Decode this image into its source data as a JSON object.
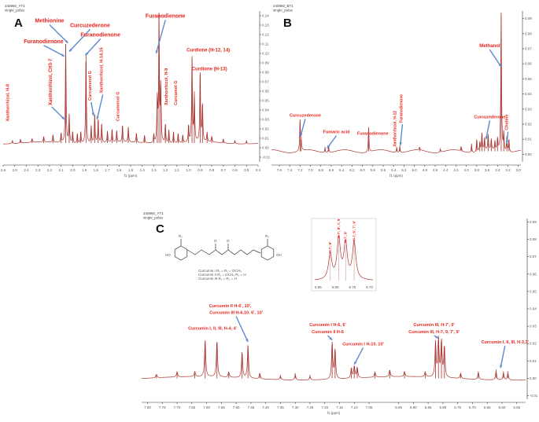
{
  "chart_data": [
    {
      "panel": "A",
      "type": "line",
      "header": [
        "240860_YT1",
        "single_pulse"
      ],
      "xlabel": "f1 (ppm)",
      "x_ticks": [
        2.6,
        2.5,
        2.4,
        2.3,
        2.2,
        2.1,
        2.0,
        1.9,
        1.8,
        1.7,
        1.6,
        1.5,
        1.4,
        1.3,
        1.2,
        1.1,
        1.0,
        0.9,
        0.8,
        0.7,
        0.6,
        0.5,
        0.4
      ],
      "y_ticks": [
        -0.01,
        0.0,
        0.01,
        0.02,
        0.03,
        0.04,
        0.05,
        0.06,
        0.07,
        0.08,
        0.09,
        0.1,
        0.11,
        0.12,
        0.13,
        0.14
      ],
      "xlim": [
        2.6,
        0.4
      ],
      "ylim": [
        -0.015,
        0.145
      ],
      "baseline": 0.005,
      "peaks": [
        {
          "x": 2.52,
          "h": 0.003
        },
        {
          "x": 2.45,
          "h": 0.004
        },
        {
          "x": 2.35,
          "h": 0.004
        },
        {
          "x": 2.25,
          "h": 0.006
        },
        {
          "x": 2.17,
          "h": 0.008
        },
        {
          "x": 2.1,
          "h": 0.01
        },
        {
          "x": 2.06,
          "h": 0.105
        },
        {
          "x": 2.03,
          "h": 0.03
        },
        {
          "x": 2.0,
          "h": 0.012
        },
        {
          "x": 1.96,
          "h": 0.01
        },
        {
          "x": 1.93,
          "h": 0.012
        },
        {
          "x": 1.885,
          "h": 0.095
        },
        {
          "x": 1.84,
          "h": 0.018
        },
        {
          "x": 1.81,
          "h": 0.03
        },
        {
          "x": 1.78,
          "h": 0.025
        },
        {
          "x": 1.75,
          "h": 0.02
        },
        {
          "x": 1.7,
          "h": 0.012
        },
        {
          "x": 1.66,
          "h": 0.014
        },
        {
          "x": 1.62,
          "h": 0.012
        },
        {
          "x": 1.57,
          "h": 0.018
        },
        {
          "x": 1.52,
          "h": 0.016
        },
        {
          "x": 1.45,
          "h": 0.01
        },
        {
          "x": 1.38,
          "h": 0.008
        },
        {
          "x": 1.3,
          "h": 0.009
        },
        {
          "x": 1.27,
          "h": 0.045
        },
        {
          "x": 1.255,
          "h": 0.135
        },
        {
          "x": 1.24,
          "h": 0.06
        },
        {
          "x": 1.2,
          "h": 0.02
        },
        {
          "x": 1.17,
          "h": 0.014
        },
        {
          "x": 1.13,
          "h": 0.012
        },
        {
          "x": 1.09,
          "h": 0.01
        },
        {
          "x": 1.05,
          "h": 0.008
        },
        {
          "x": 1.0,
          "h": 0.018
        },
        {
          "x": 0.97,
          "h": 0.09
        },
        {
          "x": 0.95,
          "h": 0.05
        },
        {
          "x": 0.9,
          "h": 0.075
        },
        {
          "x": 0.88,
          "h": 0.04
        },
        {
          "x": 0.84,
          "h": 0.01
        },
        {
          "x": 0.8,
          "h": 0.006
        },
        {
          "x": 0.7,
          "h": 0.004
        },
        {
          "x": 0.6,
          "h": 0.003
        },
        {
          "x": 0.5,
          "h": 0.003
        }
      ],
      "annotations": [
        {
          "text": "Methionine",
          "tx": 2.2,
          "ty": 0.133,
          "size": 7,
          "ax": 2.04,
          "ay": 0.111,
          "rot": 0
        },
        {
          "text": "Curcuzederone",
          "tx": 1.85,
          "ty": 0.128,
          "size": 7,
          "ax": 2.03,
          "ay": 0.102,
          "rot": 0
        },
        {
          "text": "Furanodienone",
          "tx": 2.25,
          "ty": 0.111,
          "size": 7,
          "ax": 2.07,
          "ay": 0.097,
          "rot": 0
        },
        {
          "text": "Furanodienone",
          "tx": 1.76,
          "ty": 0.118,
          "size": 7,
          "ax": 1.89,
          "ay": 0.098,
          "rot": 0
        },
        {
          "text": "Furanodienone",
          "tx": 1.2,
          "ty": 0.138,
          "size": 7,
          "ax": 1.28,
          "ay": 0.1,
          "rot": 0
        },
        {
          "text": "Curdione (H-12, 14)",
          "tx": 0.83,
          "ty": 0.102,
          "size": 6,
          "ax": 0,
          "ay": 0,
          "rot": 0
        },
        {
          "text": "Curdione (H-13)",
          "tx": 0.82,
          "ty": 0.082,
          "size": 6,
          "ax": 0,
          "ay": 0,
          "rot": 0
        },
        {
          "text": "Xanthorrhizol, CH3-7",
          "tx": 2.18,
          "ty": 0.045,
          "size": 6,
          "ax": 2.07,
          "ay": 0.03,
          "rot": -90
        },
        {
          "text": "Curcumenol G",
          "tx": 1.84,
          "ty": 0.05,
          "size": 5.5,
          "ax": 1.82,
          "ay": 0.034,
          "rot": -90
        },
        {
          "text": "Xanthorrhizol, H-14,15",
          "tx": 1.74,
          "ty": 0.058,
          "size": 5.5,
          "ax": 1.79,
          "ay": 0.03,
          "rot": -90
        },
        {
          "text": "Curcumenol G",
          "tx": 1.6,
          "ty": 0.028,
          "size": 5.5,
          "ax": 0,
          "ay": 0,
          "rot": -90
        },
        {
          "text": "Xanthorrhizol, H-8",
          "tx": 2.55,
          "ty": 0.028,
          "size": 5.5,
          "ax": 0,
          "ay": 0,
          "rot": -90
        },
        {
          "text": "Xanthorrhizol, H-9",
          "tx": 1.18,
          "ty": 0.045,
          "size": 5.5,
          "ax": 0,
          "ay": 0,
          "rot": -90
        },
        {
          "text": "Curcumol G",
          "tx": 1.1,
          "ty": 0.045,
          "size": 5.5,
          "ax": 0,
          "ay": 0,
          "rot": -90
        }
      ]
    },
    {
      "panel": "B",
      "type": "line",
      "header": [
        "240860_BT1",
        "single_pulse"
      ],
      "xlabel": "f1 (ppm)",
      "x_ticks": [
        7.6,
        7.4,
        7.2,
        7.0,
        6.8,
        6.6,
        6.4,
        6.2,
        6.0,
        5.8,
        5.6,
        5.4,
        5.2,
        5.0,
        4.8,
        4.6,
        4.4,
        4.2,
        4.0,
        3.8,
        3.6,
        3.4,
        3.2,
        3.0
      ],
      "y_ticks": [
        0.0,
        0.01,
        0.02,
        0.03,
        0.04,
        0.05,
        0.06,
        0.07,
        0.08,
        0.09
      ],
      "xlim": [
        7.75,
        2.95
      ],
      "ylim": [
        -0.005,
        0.095
      ],
      "baseline": 0.002,
      "peaks": [
        {
          "x": 7.2,
          "h": 0.02
        },
        {
          "x": 7.18,
          "h": 0.008
        },
        {
          "x": 6.72,
          "h": 0.003
        },
        {
          "x": 6.65,
          "h": 0.004
        },
        {
          "x": 5.88,
          "h": 0.016
        },
        {
          "x": 5.34,
          "h": 0.003
        },
        {
          "x": 5.28,
          "h": 0.004
        },
        {
          "x": 4.9,
          "h": 0.002
        },
        {
          "x": 4.5,
          "h": 0.002
        },
        {
          "x": 4.1,
          "h": 0.003
        },
        {
          "x": 3.9,
          "h": 0.005
        },
        {
          "x": 3.8,
          "h": 0.008
        },
        {
          "x": 3.74,
          "h": 0.006
        },
        {
          "x": 3.7,
          "h": 0.012
        },
        {
          "x": 3.65,
          "h": 0.008
        },
        {
          "x": 3.58,
          "h": 0.01
        },
        {
          "x": 3.52,
          "h": 0.007
        },
        {
          "x": 3.45,
          "h": 0.006
        },
        {
          "x": 3.4,
          "h": 0.008
        },
        {
          "x": 3.33,
          "h": 0.092
        },
        {
          "x": 3.28,
          "h": 0.012
        },
        {
          "x": 3.22,
          "h": 0.01
        },
        {
          "x": 3.18,
          "h": 0.008
        }
      ],
      "annotations": [
        {
          "text": "Methanol",
          "tx": 3.55,
          "ty": 0.071,
          "size": 6,
          "ax": 3.33,
          "ay": 0.058,
          "rot": 0
        },
        {
          "text": "Curcuzederone",
          "tx": 7.1,
          "ty": 0.025,
          "size": 5.5,
          "ax": 7.19,
          "ay": 0.012,
          "rot": 0
        },
        {
          "text": "Fumaric acid",
          "tx": 6.5,
          "ty": 0.014,
          "size": 5.5,
          "ax": 6.68,
          "ay": 0.004,
          "rot": 0
        },
        {
          "text": "Furanodienone",
          "tx": 5.8,
          "ty": 0.013,
          "size": 5.5,
          "ax": 0,
          "ay": 0,
          "rot": 0
        },
        {
          "text": "Xanthorrhizol, H-12",
          "tx": 5.35,
          "ty": 0.005,
          "size": 5,
          "ax": 0,
          "ay": 0,
          "rot": -90
        },
        {
          "text": "Furanodienone",
          "tx": 5.23,
          "ty": 0.021,
          "size": 5,
          "ax": 5.27,
          "ay": 0.006,
          "rot": -90
        },
        {
          "text": "Curcuzederone",
          "tx": 3.55,
          "ty": 0.024,
          "size": 5.5,
          "ax": 3.62,
          "ay": 0.01,
          "rot": 0
        },
        {
          "text": "Choline",
          "tx": 3.2,
          "ty": 0.016,
          "size": 5.5,
          "ax": 3.22,
          "ay": 0.007,
          "rot": -90
        }
      ]
    },
    {
      "panel": "C",
      "type": "line",
      "header": [
        "240860_YT1",
        "single_pulse"
      ],
      "xlabel": "f1 (ppm)",
      "x_ticks": [
        7.8,
        7.75,
        7.7,
        7.65,
        7.6,
        7.55,
        7.5,
        7.45,
        7.4,
        7.35,
        7.3,
        7.25,
        7.2,
        7.15,
        7.1,
        7.05,
        6.95,
        6.9,
        6.85,
        6.8,
        6.75,
        6.7,
        6.65,
        6.6,
        6.55
      ],
      "y_ticks": [
        -0.01,
        0.0,
        0.01,
        0.02,
        0.03,
        0.04,
        0.05,
        0.06,
        0.07,
        0.08,
        0.09
      ],
      "xlim": [
        7.82,
        6.52
      ],
      "ylim": [
        -0.012,
        0.092
      ],
      "baseline": 0.0,
      "peaks": [
        {
          "x": 7.77,
          "h": 0.002
        },
        {
          "x": 7.7,
          "h": 0.003
        },
        {
          "x": 7.64,
          "h": 0.003
        },
        {
          "x": 7.605,
          "h": 0.021
        },
        {
          "x": 7.565,
          "h": 0.021
        },
        {
          "x": 7.525,
          "h": 0.003
        },
        {
          "x": 7.48,
          "h": 0.015
        },
        {
          "x": 7.46,
          "h": 0.019
        },
        {
          "x": 7.42,
          "h": 0.003
        },
        {
          "x": 7.35,
          "h": 0.002
        },
        {
          "x": 7.3,
          "h": 0.003
        },
        {
          "x": 7.25,
          "h": 0.002
        },
        {
          "x": 7.175,
          "h": 0.021
        },
        {
          "x": 7.165,
          "h": 0.017
        },
        {
          "x": 7.11,
          "h": 0.006
        },
        {
          "x": 7.1,
          "h": 0.007
        },
        {
          "x": 7.09,
          "h": 0.006
        },
        {
          "x": 7.03,
          "h": 0.003
        },
        {
          "x": 6.98,
          "h": 0.004
        },
        {
          "x": 6.93,
          "h": 0.003
        },
        {
          "x": 6.86,
          "h": 0.003
        },
        {
          "x": 6.825,
          "h": 0.02
        },
        {
          "x": 6.815,
          "h": 0.022
        },
        {
          "x": 6.805,
          "h": 0.021
        },
        {
          "x": 6.795,
          "h": 0.018
        },
        {
          "x": 6.74,
          "h": 0.003
        },
        {
          "x": 6.68,
          "h": 0.004
        },
        {
          "x": 6.62,
          "h": 0.005
        },
        {
          "x": 6.595,
          "h": 0.004
        },
        {
          "x": 6.58,
          "h": 0.004
        }
      ],
      "annotations": [
        {
          "text": "Curcumin II H-6', 10',",
          "tx": 7.52,
          "ty": 0.041,
          "size": 5.5,
          "ax": 0,
          "ay": 0,
          "rot": 0
        },
        {
          "text": "Curcumin III H-6,10, 6', 10'",
          "tx": 7.5,
          "ty": 0.037,
          "size": 5.5,
          "ax": 7.46,
          "ay": 0.021,
          "rot": 0
        },
        {
          "text": "Curcumin I, II, III, H-4, 4'",
          "tx": 7.58,
          "ty": 0.028,
          "size": 5.5,
          "ax": 0,
          "ay": 0,
          "rot": 0
        },
        {
          "text": "Curcumin I H-6, 6'",
          "tx": 7.19,
          "ty": 0.03,
          "size": 5.5,
          "ax": 0,
          "ay": 0,
          "rot": 0
        },
        {
          "text": "Curcumin II H-6",
          "tx": 7.19,
          "ty": 0.026,
          "size": 5.5,
          "ax": 7.175,
          "ay": 0.022,
          "rot": 0
        },
        {
          "text": "Curcumin I H-10, 10'",
          "tx": 7.07,
          "ty": 0.019,
          "size": 5.5,
          "ax": 7.1,
          "ay": 0.008,
          "rot": 0
        },
        {
          "text": "Curcumin III, H-7', 9'",
          "tx": 6.83,
          "ty": 0.03,
          "size": 5.5,
          "ax": 0,
          "ay": 0,
          "rot": 0
        },
        {
          "text": "Curcumin III, H-7, 9, 7', 9'",
          "tx": 6.83,
          "ty": 0.026,
          "size": 5.5,
          "ax": 6.815,
          "ay": 0.023,
          "rot": 0
        },
        {
          "text": "Curcumin I, II, III, H-3,3'",
          "tx": 6.59,
          "ty": 0.02,
          "size": 5.5,
          "ax": 6.605,
          "ay": 0.006,
          "rot": 0
        }
      ],
      "structure_legend": [
        "Curcumin I    R₁ = R₂ = OCH₃",
        "Curcumin II   R₁ = OCH₃  R₂ = H",
        "Curcumin III  R₁ = R₂ = H"
      ],
      "structure_labels": [
        "HO",
        "R₁",
        "R₂",
        "OH",
        "O",
        "O"
      ],
      "inset": {
        "x_ticks": [
          6.85,
          6.8,
          6.75,
          6.7
        ],
        "y_ticks": [],
        "peaks": [
          {
            "x": 6.815,
            "h": 0.55
          },
          {
            "x": 6.79,
            "h": 0.88
          },
          {
            "x": 6.77,
            "h": 0.78
          },
          {
            "x": 6.745,
            "h": 0.82
          }
        ],
        "labels": [
          "H-7', 9'",
          "H-7', 9', 7, 9",
          "H-7', 9'",
          "H-7, 9', 7', 9'"
        ]
      }
    }
  ]
}
